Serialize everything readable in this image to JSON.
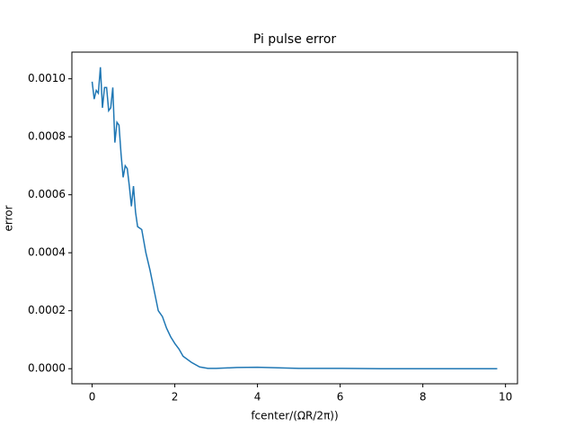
{
  "chart_data": {
    "type": "line",
    "title": "Pi pulse error",
    "x_label": "fcenter/(ΩR/2π))",
    "y_label": "error",
    "x": [
      0,
      0.05,
      0.1,
      0.15,
      0.2,
      0.25,
      0.3,
      0.35,
      0.4,
      0.45,
      0.5,
      0.55,
      0.6,
      0.65,
      0.7,
      0.75,
      0.8,
      0.85,
      0.9,
      0.95,
      1.0,
      1.05,
      1.1,
      1.2,
      1.3,
      1.4,
      1.5,
      1.6,
      1.7,
      1.8,
      1.9,
      2.0,
      2.1,
      2.2,
      2.4,
      2.6,
      2.8,
      3.0,
      3.5,
      4.0,
      4.5,
      5.0,
      6.0,
      7.0,
      8.0,
      9.0,
      9.8
    ],
    "series": [
      {
        "name": "error",
        "color": "#1f77b4",
        "values": [
          0.00099,
          0.00093,
          0.00096,
          0.00095,
          0.00104,
          0.0009,
          0.00097,
          0.00097,
          0.00089,
          0.0009,
          0.00097,
          0.00078,
          0.00085,
          0.00084,
          0.00074,
          0.00066,
          0.0007,
          0.00069,
          0.00063,
          0.00056,
          0.00063,
          0.00054,
          0.00049,
          0.00048,
          0.0004,
          0.00034,
          0.00027,
          0.0002,
          0.00018,
          0.00014,
          0.00011,
          8.7e-05,
          6.8e-05,
          4.3e-05,
          2.2e-05,
          6e-06,
          1e-06,
          1e-06,
          4e-06,
          5e-06,
          3e-06,
          1e-06,
          1e-06,
          0,
          0,
          0,
          0
        ]
      }
    ],
    "xlim": [
      -0.49,
      10.29
    ],
    "xticks": [
      0,
      2,
      4,
      6,
      8,
      10
    ],
    "ylim": [
      -5.2e-05,
      0.001092
    ],
    "yticks": [
      {
        "value": 0,
        "label": "0.0000"
      },
      {
        "value": 0.0002,
        "label": "0.0002"
      },
      {
        "value": 0.0004,
        "label": "0.0004"
      },
      {
        "value": 0.0006,
        "label": "0.0006"
      },
      {
        "value": 0.0008,
        "label": "0.0008"
      },
      {
        "value": 0.001,
        "label": "0.0010"
      }
    ]
  }
}
